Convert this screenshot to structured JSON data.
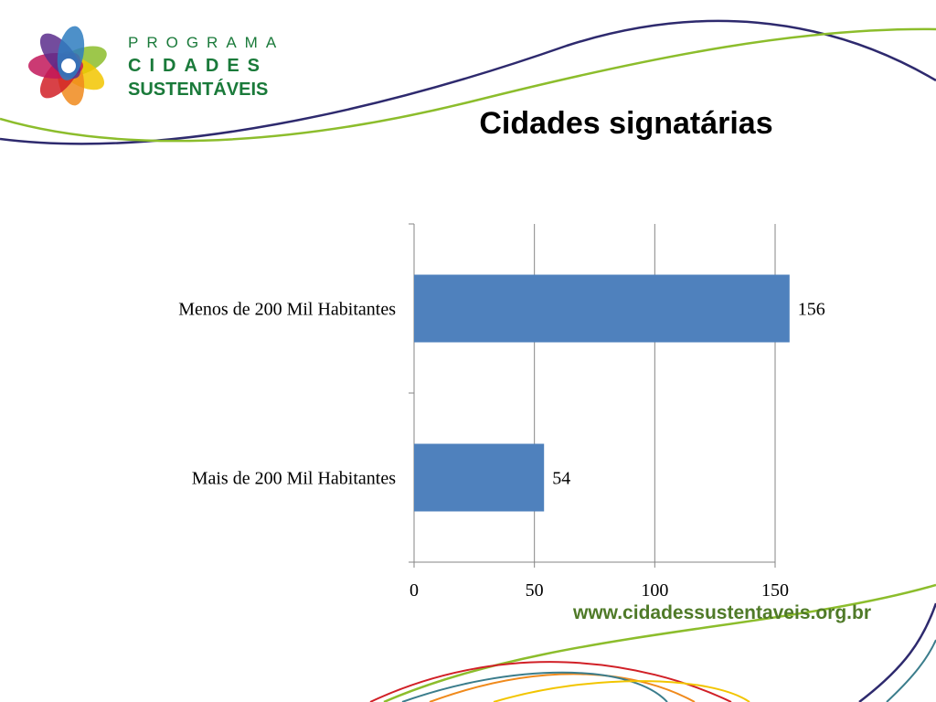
{
  "logo": {
    "line1": "PROGRAMA",
    "line2": "CIDADES",
    "line3": "SUSTENTÁVEIS"
  },
  "footer": {
    "url": "www.cidadessustentaveis.org.br"
  },
  "chart_data": {
    "type": "bar",
    "orientation": "horizontal",
    "title": "Cidades signatárias",
    "categories": [
      "Menos de 200 Mil Habitantes",
      "Mais de 200 Mil Habitantes"
    ],
    "values": [
      156,
      54
    ],
    "color": "#4f81bd",
    "xlim": [
      0,
      150
    ],
    "xticks": [
      0,
      50,
      100,
      150
    ],
    "grid": true
  }
}
